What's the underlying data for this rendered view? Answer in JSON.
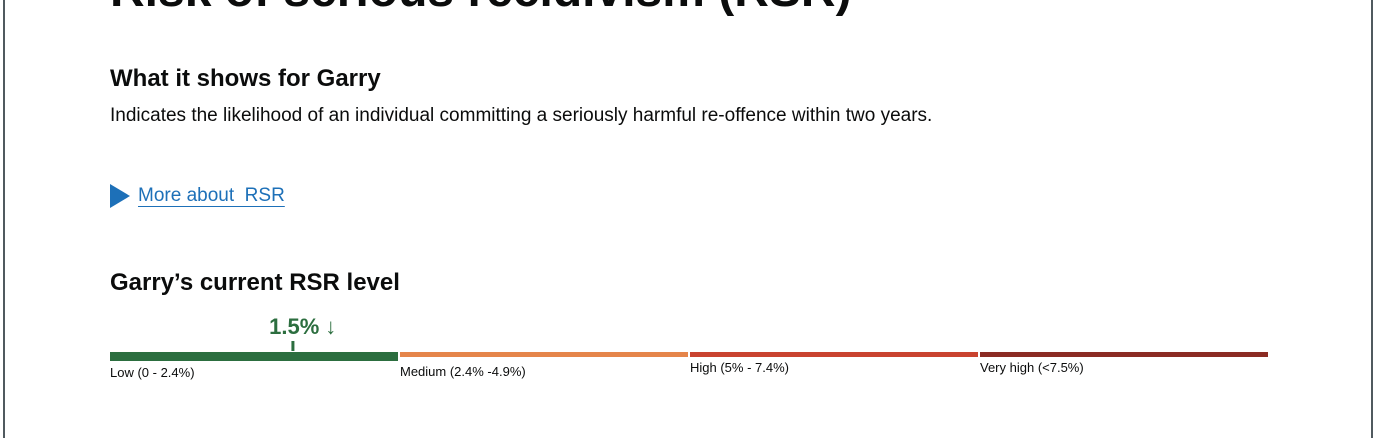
{
  "page": {
    "title": "Risk of serious recidivism (RSR)"
  },
  "what_it_shows": {
    "heading": "What it shows for Garry",
    "description": "Indicates the likelihood of an individual committing a seriously harmful re-offence within two years."
  },
  "details": {
    "summary_label": "More about  RSR"
  },
  "current_level": {
    "heading": "Garry’s current RSR level",
    "score": "1.5%",
    "score_value": 1.5,
    "trend_icon": "arrow-down-icon",
    "trend_glyph": "↓",
    "scale_max": 10,
    "bands": [
      {
        "label": "Low (0 - 2.4%)",
        "color": "#2c6e3f"
      },
      {
        "label": "Medium (2.4% -4.9%)",
        "color": "#e5854a"
      },
      {
        "label": "High (5% - 7.4%)",
        "color": "#c9432f"
      },
      {
        "label": "Very high (<7.5%)",
        "color": "#8b2b23"
      }
    ]
  }
}
